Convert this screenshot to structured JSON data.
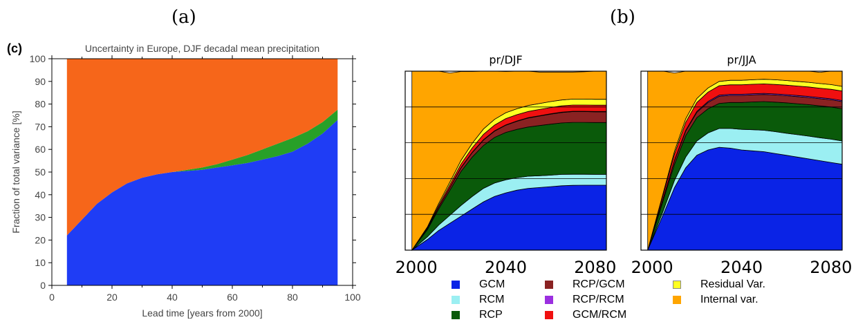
{
  "panel_labels": [
    "(a)",
    "(b)"
  ],
  "chart_data": [
    {
      "type": "area",
      "panel_tag": "(c)",
      "title": "Uncertainty in Europe, DJF decadal mean precipitation",
      "xlabel": "Lead time  [years from 2000]",
      "ylabel": "Fraction of total variance  [%]",
      "xlim": [
        0,
        100
      ],
      "ylim": [
        0,
        100
      ],
      "xticks": [
        0,
        20,
        40,
        60,
        80,
        100
      ],
      "yticks": [
        0,
        10,
        20,
        30,
        40,
        50,
        60,
        70,
        80,
        90,
        100
      ],
      "x": [
        5,
        10,
        15,
        20,
        25,
        30,
        35,
        40,
        45,
        50,
        55,
        60,
        65,
        70,
        75,
        80,
        85,
        90,
        95
      ],
      "series": [
        {
          "color": "#1f3df5",
          "values": [
            22,
            29,
            36,
            41,
            45,
            47.5,
            49,
            50,
            50.5,
            51,
            52,
            53,
            54,
            55.5,
            57,
            59,
            62.5,
            67,
            73
          ]
        },
        {
          "color": "#28a028",
          "values": [
            0,
            0,
            0,
            0,
            0,
            0,
            0,
            0,
            0.5,
            1,
            1.5,
            2.5,
            3.5,
            4.5,
            5.5,
            6,
            5.5,
            5,
            4.5
          ]
        },
        {
          "color": "#f6661a",
          "values": [
            78,
            71,
            64,
            59,
            55,
            52.5,
            51,
            50,
            49,
            48,
            46.5,
            44.5,
            42.5,
            40,
            37.5,
            35,
            32,
            28,
            22.5
          ]
        }
      ]
    },
    {
      "type": "area",
      "title": "pr/DJF",
      "xticks": [
        2000,
        2040,
        2080
      ],
      "xlim": [
        1995,
        2085
      ],
      "x": [
        1998,
        2005,
        2010,
        2015,
        2020,
        2025,
        2030,
        2035,
        2040,
        2045,
        2050,
        2055,
        2060,
        2065,
        2070,
        2075,
        2080,
        2085
      ],
      "series": [
        {
          "name": "GCM",
          "values": [
            0,
            6,
            11,
            15,
            19,
            23,
            27,
            30,
            32,
            33.5,
            34.5,
            35,
            35.5,
            36,
            36.2,
            36.3,
            36.3,
            36.3
          ]
        },
        {
          "name": "RCM",
          "values": [
            0,
            1.5,
            3,
            4.5,
            6,
            7,
            7.5,
            7.5,
            7.3,
            7,
            6.8,
            6.6,
            6.4,
            6.3,
            6.2,
            6.1,
            6,
            6
          ]
        },
        {
          "name": "RCP",
          "values": [
            0,
            4,
            9,
            14,
            19,
            22,
            24,
            25.5,
            26.5,
            27,
            27.5,
            28,
            28.5,
            28.8,
            29,
            29,
            29,
            29
          ]
        },
        {
          "name": "RCP/GCM",
          "values": [
            0,
            0.5,
            1,
            1.5,
            2,
            2.5,
            3,
            3.5,
            4,
            4.5,
            5,
            5.3,
            5.6,
            5.8,
            6,
            6,
            6,
            6
          ]
        },
        {
          "name": "RCP/RCM",
          "values": [
            0,
            0.1,
            0.1,
            0.1,
            0.2,
            0.2,
            0.2,
            0.2,
            0.2,
            0.2,
            0.2,
            0.2,
            0.2,
            0.2,
            0.2,
            0.2,
            0.2,
            0.2
          ]
        },
        {
          "name": "GCM/RCM",
          "values": [
            0,
            0.5,
            1,
            1.5,
            2,
            2.5,
            3,
            3.2,
            3.5,
            3.5,
            3.5,
            3.5,
            3.5,
            3.5,
            3.5,
            3.5,
            3.5,
            3.5
          ]
        },
        {
          "name": "Residual Var.",
          "values": [
            0,
            0.5,
            1,
            1.5,
            2,
            2.5,
            3,
            3.2,
            3.3,
            3.3,
            3.3,
            3.3,
            3.3,
            3.3,
            3.3,
            3.3,
            3.3,
            3.3
          ]
        },
        {
          "name": "Internal var.",
          "values": [
            100,
            86.9,
            73.9,
            60.9,
            49.6,
            40.1,
            32.3,
            26.9,
            23,
            21,
            19.2,
            17.6,
            16.5,
            15.6,
            15.1,
            15.3,
            15.7,
            15.7
          ]
        }
      ]
    },
    {
      "type": "area",
      "title": "pr/JJA",
      "xticks": [
        2000,
        2040,
        2080
      ],
      "xlim": [
        1995,
        2085
      ],
      "x": [
        1998,
        2005,
        2010,
        2015,
        2020,
        2025,
        2030,
        2035,
        2040,
        2045,
        2050,
        2055,
        2060,
        2065,
        2070,
        2075,
        2080,
        2085
      ],
      "series": [
        {
          "name": "GCM",
          "values": [
            0,
            20,
            35,
            46,
            53,
            56,
            57.5,
            57,
            56,
            55.5,
            55,
            54,
            53,
            52,
            51,
            50,
            49,
            48
          ]
        },
        {
          "name": "RCM",
          "values": [
            0,
            2,
            4,
            6,
            8,
            9.5,
            10.5,
            11,
            11.5,
            11.8,
            12,
            12.2,
            12.3,
            12.5,
            12.7,
            12.8,
            13,
            13
          ]
        },
        {
          "name": "RCP",
          "values": [
            0,
            6,
            9,
            12,
            13,
            13.5,
            14,
            14.5,
            15,
            15.5,
            16,
            16.5,
            17,
            17.3,
            17.6,
            17.8,
            18,
            18
          ]
        },
        {
          "name": "RCP/GCM",
          "values": [
            0,
            1,
            2,
            2.5,
            3,
            3.5,
            4,
            4,
            4,
            4,
            4,
            4,
            4,
            4,
            4,
            4,
            4,
            4
          ]
        },
        {
          "name": "RCP/RCM",
          "values": [
            0,
            0.2,
            0.3,
            0.4,
            0.5,
            0.6,
            0.6,
            0.6,
            0.6,
            0.6,
            0.6,
            0.6,
            0.6,
            0.6,
            0.6,
            0.6,
            0.6,
            0.6
          ]
        },
        {
          "name": "GCM/RCM",
          "values": [
            0,
            2,
            3.5,
            4.5,
            5,
            5.2,
            5.3,
            5.3,
            5.3,
            5.3,
            5.3,
            5.3,
            5.3,
            5.3,
            5.3,
            5.3,
            5.3,
            5.3
          ]
        },
        {
          "name": "Residual Var.",
          "values": [
            0,
            1,
            1.5,
            2,
            2.2,
            2.3,
            2.4,
            2.5,
            2.5,
            2.5,
            2.6,
            2.6,
            2.6,
            2.6,
            2.6,
            2.6,
            2.6,
            2.6
          ]
        },
        {
          "name": "Internal var.",
          "values": [
            100,
            67.8,
            43.7,
            26.6,
            15.3,
            9.4,
            5.7,
            5.1,
            5.1,
            4.8,
            4.5,
            4.8,
            5.2,
            5.7,
            6.2,
            6.3,
            7.5,
            8.5
          ]
        }
      ]
    }
  ],
  "legend": [
    {
      "label": "GCM",
      "color": "#0a23e6"
    },
    {
      "label": "RCM",
      "color": "#9beff2"
    },
    {
      "label": "RCP",
      "color": "#0a5a0a"
    },
    {
      "label": "RCP/GCM",
      "color": "#8a2222"
    },
    {
      "label": "RCP/RCM",
      "color": "#9b2fe0"
    },
    {
      "label": "GCM/RCM",
      "color": "#f01010"
    },
    {
      "label": "Residual Var.",
      "color": "#ffff22"
    },
    {
      "label": "Internal var.",
      "color": "#ffa500"
    }
  ]
}
